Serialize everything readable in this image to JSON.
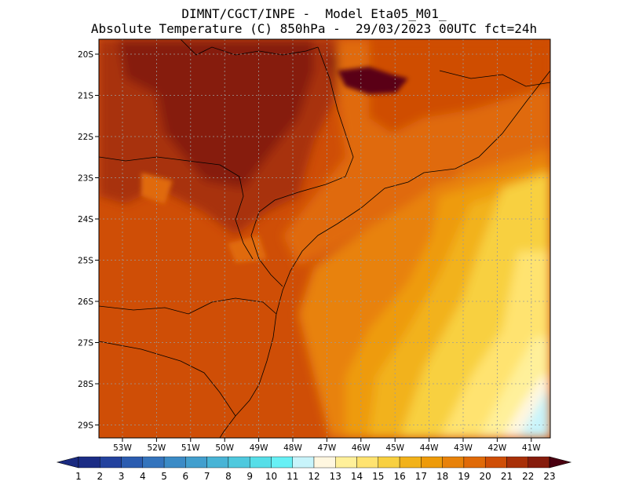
{
  "header": {
    "line1": "DIMNT/CGCT/INPE -  Model Eta05_M01_",
    "line2": "Absolute Temperature (C) 850hPa -  29/03/2023 00UTC fct=24h"
  },
  "axes": {
    "lat_labels": [
      "20S",
      "21S",
      "22S",
      "23S",
      "24S",
      "25S",
      "26S",
      "27S",
      "28S",
      "29S"
    ],
    "lon_labels": [
      "53W",
      "52W",
      "51W",
      "50W",
      "49W",
      "48W",
      "47W",
      "46W",
      "45W",
      "44W",
      "43W",
      "42W",
      "41W"
    ]
  },
  "colorbar": {
    "labels": [
      "1",
      "2",
      "3",
      "4",
      "5",
      "6",
      "7",
      "8",
      "9",
      "10",
      "11",
      "12",
      "13",
      "14",
      "15",
      "16",
      "17",
      "18",
      "19",
      "20",
      "21",
      "22",
      "23"
    ],
    "colors": [
      "#1b2c85",
      "#23429e",
      "#2b5cb0",
      "#3474bd",
      "#3b8bc6",
      "#429fce",
      "#48b4d6",
      "#4fc9de",
      "#56dee8",
      "#67f0f5",
      "#c8f4fb",
      "#fff7e0",
      "#fff09a",
      "#ffe370",
      "#f8d040",
      "#f2b21a",
      "#ee9b0a",
      "#e8820a",
      "#e06a08",
      "#cf4e06",
      "#a83008",
      "#861c0c",
      "#5a0518"
    ],
    "under_color": "#1a2a80",
    "over_color": "#4a0010"
  }
}
